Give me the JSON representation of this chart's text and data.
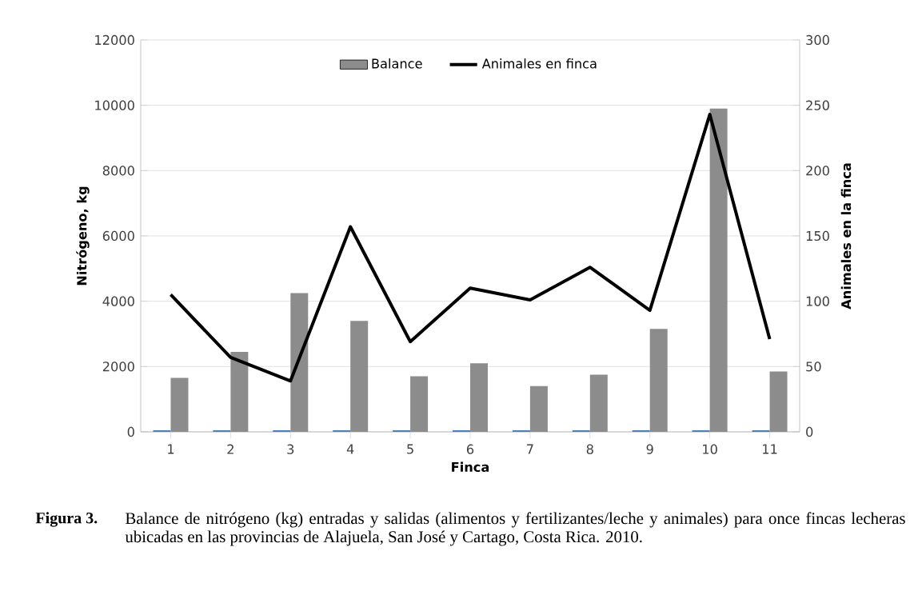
{
  "chart_data": {
    "type": "bar",
    "categories": [
      "1",
      "2",
      "3",
      "4",
      "5",
      "6",
      "7",
      "8",
      "9",
      "10",
      "11"
    ],
    "series": [
      {
        "color": "#4f81bd",
        "values": [
          50,
          50,
          50,
          50,
          50,
          50,
          50,
          50,
          50,
          50,
          50
        ]
      },
      {
        "name": "Balance",
        "color": "#8c8c8c",
        "values": [
          1650,
          2450,
          4250,
          3400,
          1700,
          2100,
          1400,
          1750,
          3150,
          9900,
          1850
        ]
      },
      {
        "name": "Animales en finca",
        "type": "line",
        "axis": "y2",
        "color": "#000000",
        "values": [
          105,
          57,
          39,
          157,
          69,
          110,
          101,
          126,
          93,
          243,
          71
        ]
      }
    ],
    "xlabel": "Finca",
    "ylabel": "Nitrógeno, kg",
    "y2label": "Animales en la finca",
    "ylim": [
      0,
      12000
    ],
    "yticks": [
      0,
      2000,
      4000,
      6000,
      8000,
      10000,
      12000
    ],
    "y2lim": [
      0,
      300
    ],
    "y2ticks": [
      0,
      50,
      100,
      150,
      200,
      250,
      300
    ],
    "grid": "y",
    "legend": "top",
    "marker": "none",
    "line_style": "solid",
    "annotations": [
      "Figura 3.",
      "Balance de nitrógeno (kg) entradas y salidas (alimentos y fertilizantes/leche y animales) para once fincas lecheras ubicadas en las provincias de Alajuela, San José y Cartago, Costa Rica. 2010."
    ]
  }
}
